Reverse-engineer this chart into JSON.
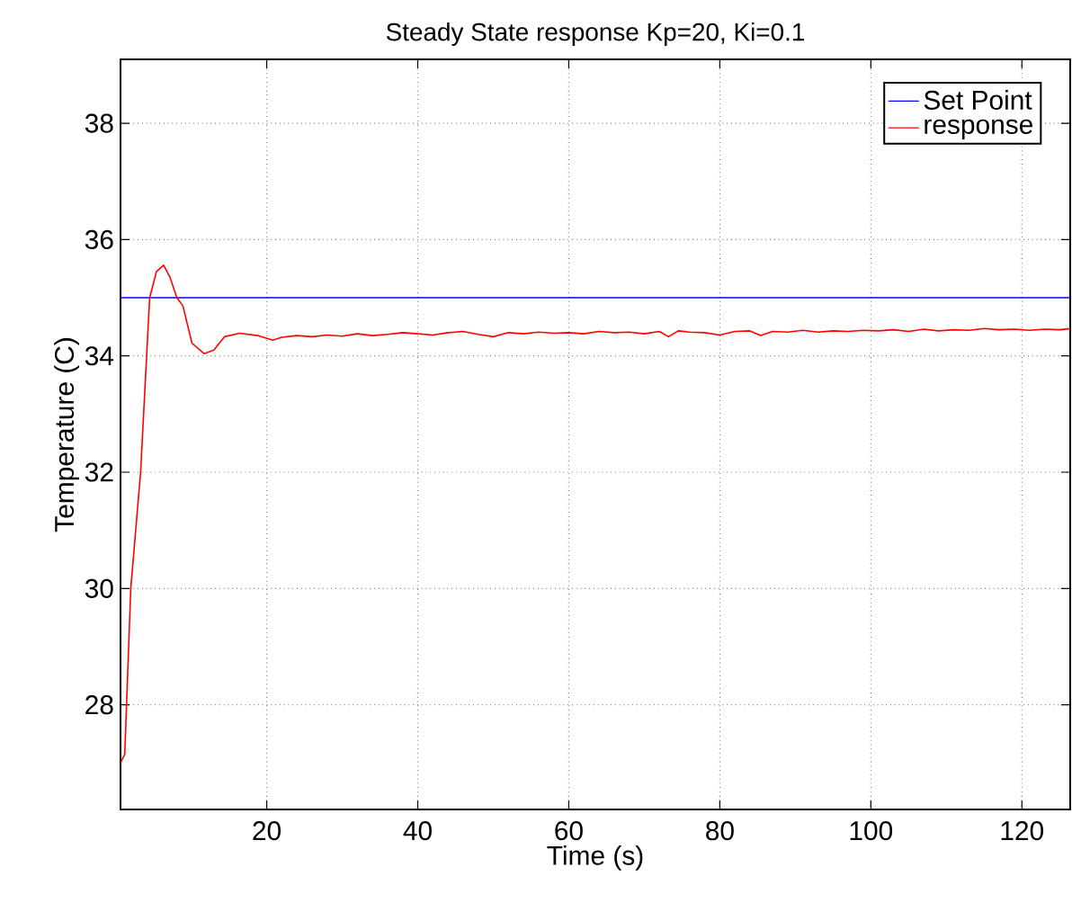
{
  "chart_data": {
    "type": "line",
    "title": "Steady State response Kp=20, Ki=0.1",
    "xlabel": "Time (s)",
    "ylabel": "Temperature (C)",
    "xlim": [
      0.64,
      126.4
    ],
    "ylim": [
      26.2,
      39.1
    ],
    "xticks": [
      20,
      40,
      60,
      80,
      100,
      120
    ],
    "yticks": [
      28,
      30,
      32,
      34,
      36,
      38
    ],
    "grid": true,
    "legend": "top right",
    "series": [
      {
        "name": "Set Point",
        "color": "#0000ff",
        "x": [
          0.64,
          126.4
        ],
        "values": [
          35,
          35
        ]
      },
      {
        "name": "response",
        "color": "#ff0000",
        "x": [
          0.64,
          1.2,
          2.0,
          3.3,
          4.5,
          5.4,
          6.35,
          7.2,
          8.1,
          8.9,
          10.1,
          11.7,
          13.0,
          14.4,
          16.4,
          18.8,
          20.8,
          22,
          24,
          26,
          28,
          30,
          32,
          34,
          36,
          38,
          40,
          42,
          44,
          46,
          48,
          50,
          52,
          54,
          56,
          58,
          60,
          62,
          64,
          66,
          68,
          70,
          72,
          73.2,
          74.5,
          76,
          78,
          80,
          82,
          84,
          85.4,
          87,
          89,
          91,
          93,
          95,
          97,
          99,
          101,
          103,
          105,
          107,
          109,
          111,
          113,
          115,
          117,
          119,
          121,
          123,
          125,
          126.4
        ],
        "values": [
          27.0,
          27.15,
          30.0,
          32.0,
          35.0,
          35.45,
          35.56,
          35.35,
          35.0,
          34.86,
          34.22,
          34.04,
          34.1,
          34.33,
          34.39,
          34.35,
          34.27,
          34.32,
          34.35,
          34.33,
          34.36,
          34.34,
          34.38,
          34.35,
          34.37,
          34.4,
          34.38,
          34.36,
          34.4,
          34.42,
          34.37,
          34.33,
          34.4,
          34.38,
          34.41,
          34.39,
          34.4,
          34.38,
          34.42,
          34.4,
          34.41,
          34.38,
          34.42,
          34.33,
          34.43,
          34.41,
          34.4,
          34.36,
          34.42,
          34.43,
          34.35,
          34.42,
          34.41,
          34.44,
          34.41,
          34.43,
          34.42,
          34.44,
          34.43,
          34.45,
          34.42,
          34.46,
          34.43,
          34.45,
          34.44,
          34.47,
          34.45,
          34.46,
          34.44,
          34.46,
          34.45,
          34.47
        ]
      }
    ]
  }
}
